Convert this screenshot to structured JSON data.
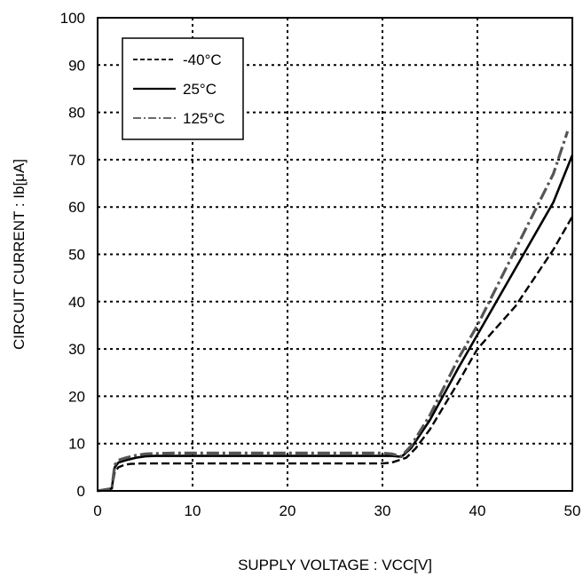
{
  "chart_data": {
    "type": "line",
    "xlabel": "SUPPLY VOLTAGE : VCC[V]",
    "ylabel": "CIRCUIT CURRENT : Ib[μA]",
    "xlim": [
      0,
      50
    ],
    "ylim": [
      0,
      100
    ],
    "xticks": [
      0,
      10,
      20,
      30,
      40,
      50
    ],
    "yticks": [
      0,
      10,
      20,
      30,
      40,
      50,
      60,
      70,
      80,
      90,
      100
    ],
    "xtick_labels": [
      "0",
      "10",
      "20",
      "30",
      "40",
      "50"
    ],
    "ytick_labels": [
      "0",
      "10",
      "20",
      "30",
      "40",
      "50",
      "60",
      "70",
      "80",
      "90",
      "100"
    ],
    "grid": true,
    "legend_position": "top-left",
    "series": [
      {
        "name": "-40°C",
        "style": "dashed",
        "color": "#000000",
        "x": [
          0,
          1.5,
          1.8,
          2.2,
          2.8,
          3.5,
          4.5,
          6,
          8,
          10,
          15,
          20,
          25,
          30,
          31,
          32.5,
          33.5,
          35,
          38,
          40,
          44,
          48,
          50
        ],
        "y": [
          0,
          0.5,
          4,
          5,
          5.5,
          5.7,
          5.8,
          5.8,
          5.8,
          5.8,
          5.8,
          5.8,
          5.8,
          5.8,
          6,
          7,
          9,
          13,
          23,
          30,
          39,
          51,
          58
        ]
      },
      {
        "name": "25°C",
        "style": "solid",
        "color": "#000000",
        "x": [
          0,
          1.5,
          1.8,
          2.2,
          3,
          4,
          5,
          6,
          8,
          10,
          15,
          20,
          25,
          30,
          31,
          32,
          33,
          35,
          38,
          40,
          44,
          48,
          50
        ],
        "y": [
          0,
          0.5,
          5,
          6,
          6.5,
          7,
          7.3,
          7.4,
          7.4,
          7.4,
          7.4,
          7.4,
          7.4,
          7.4,
          7.4,
          7.2,
          9,
          15,
          26,
          33,
          47,
          61,
          71
        ]
      },
      {
        "name": "125°C",
        "style": "dash-dot",
        "color": "#555555",
        "x": [
          0,
          1.5,
          1.8,
          2.2,
          3,
          4,
          5,
          6,
          8,
          10,
          15,
          20,
          25,
          30,
          31,
          32,
          33,
          35,
          38,
          40,
          44,
          48,
          49.5
        ],
        "y": [
          0,
          0.5,
          5.5,
          6.5,
          7,
          7.5,
          7.8,
          7.9,
          8,
          8,
          8,
          8,
          8,
          8,
          7.8,
          7.3,
          9.5,
          16,
          28,
          35,
          51,
          67,
          76
        ]
      }
    ]
  }
}
